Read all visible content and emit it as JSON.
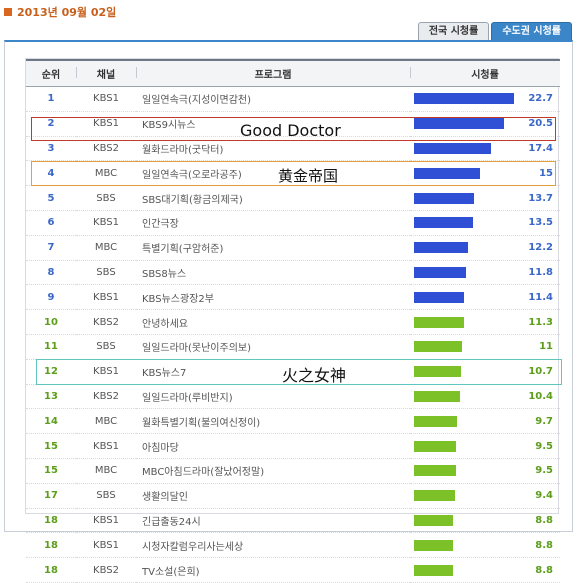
{
  "date": "2013년 09월 02일",
  "tabs": [
    {
      "label": "전국 시청률",
      "active": false
    },
    {
      "label": "수도권 시청률",
      "active": true
    }
  ],
  "table": {
    "headers": {
      "rank": "순위",
      "channel": "채널",
      "program": "프로그램",
      "rating": "시청률"
    },
    "rows": [
      {
        "rank": "1",
        "channel": "KBS1",
        "program": "일일연속극(지성이면감천)",
        "rating": 22.7,
        "rating_label": "22.7",
        "color": "blue"
      },
      {
        "rank": "2",
        "channel": "KBS1",
        "program": "KBS9시뉴스",
        "rating": 20.5,
        "rating_label": "20.5",
        "color": "blue"
      },
      {
        "rank": "3",
        "channel": "KBS2",
        "program": "월화드라마(굿닥터)",
        "rating": 17.4,
        "rating_label": "17.4",
        "color": "blue"
      },
      {
        "rank": "4",
        "channel": "MBC",
        "program": "일일연속극(오로라공주)",
        "rating": 15,
        "rating_label": "15",
        "color": "blue"
      },
      {
        "rank": "5",
        "channel": "SBS",
        "program": "SBS대기획(황금의제국)",
        "rating": 13.7,
        "rating_label": "13.7",
        "color": "blue"
      },
      {
        "rank": "6",
        "channel": "KBS1",
        "program": "인간극장",
        "rating": 13.5,
        "rating_label": "13.5",
        "color": "blue"
      },
      {
        "rank": "7",
        "channel": "MBC",
        "program": "특별기획(구암허준)",
        "rating": 12.2,
        "rating_label": "12.2",
        "color": "blue"
      },
      {
        "rank": "8",
        "channel": "SBS",
        "program": "SBS8뉴스",
        "rating": 11.8,
        "rating_label": "11.8",
        "color": "blue"
      },
      {
        "rank": "9",
        "channel": "KBS1",
        "program": "KBS뉴스광장2부",
        "rating": 11.4,
        "rating_label": "11.4",
        "color": "blue"
      },
      {
        "rank": "10",
        "channel": "KBS2",
        "program": "안녕하세요",
        "rating": 11.3,
        "rating_label": "11.3",
        "color": "green"
      },
      {
        "rank": "11",
        "channel": "SBS",
        "program": "일일드라마(못난이주의보)",
        "rating": 11,
        "rating_label": "11",
        "color": "green"
      },
      {
        "rank": "12",
        "channel": "KBS1",
        "program": "KBS뉴스7",
        "rating": 10.7,
        "rating_label": "10.7",
        "color": "green"
      },
      {
        "rank": "13",
        "channel": "KBS2",
        "program": "일일드라마(루비반지)",
        "rating": 10.4,
        "rating_label": "10.4",
        "color": "green"
      },
      {
        "rank": "14",
        "channel": "MBC",
        "program": "월화특별기획(불의여신정이)",
        "rating": 9.7,
        "rating_label": "9.7",
        "color": "green"
      },
      {
        "rank": "15",
        "channel": "KBS1",
        "program": "아침마당",
        "rating": 9.5,
        "rating_label": "9.5",
        "color": "green"
      },
      {
        "rank": "15",
        "channel": "MBC",
        "program": "MBC아침드라마(잘났어정말)",
        "rating": 9.5,
        "rating_label": "9.5",
        "color": "green"
      },
      {
        "rank": "17",
        "channel": "SBS",
        "program": "생활의달인",
        "rating": 9.4,
        "rating_label": "9.4",
        "color": "green"
      },
      {
        "rank": "18",
        "channel": "KBS1",
        "program": "긴급출동24시",
        "rating": 8.8,
        "rating_label": "8.8",
        "color": "green"
      },
      {
        "rank": "18",
        "channel": "KBS1",
        "program": "시청자칼럼우리사는세상",
        "rating": 8.8,
        "rating_label": "8.8",
        "color": "green"
      },
      {
        "rank": "18",
        "channel": "KBS2",
        "program": "TV소설(은희)",
        "rating": 8.8,
        "rating_label": "8.8",
        "color": "green"
      }
    ]
  },
  "annotations": [
    {
      "row": "3",
      "text": "Good Doctor",
      "border_color": "#c0392b"
    },
    {
      "row": "5",
      "text": "黄金帝国",
      "border_color": "#e0a040"
    },
    {
      "row": "14",
      "text": "火之女神",
      "border_color": "#5fc6c0"
    }
  ],
  "colors": {
    "accent": "#3b86c8",
    "bar_top": "#2f4fd4",
    "bar_rest": "#7dc128",
    "rank_top": "#3b67c8",
    "rank_rest": "#5c9e1a",
    "date": "#c8601c"
  },
  "max_rating": 22.7
}
